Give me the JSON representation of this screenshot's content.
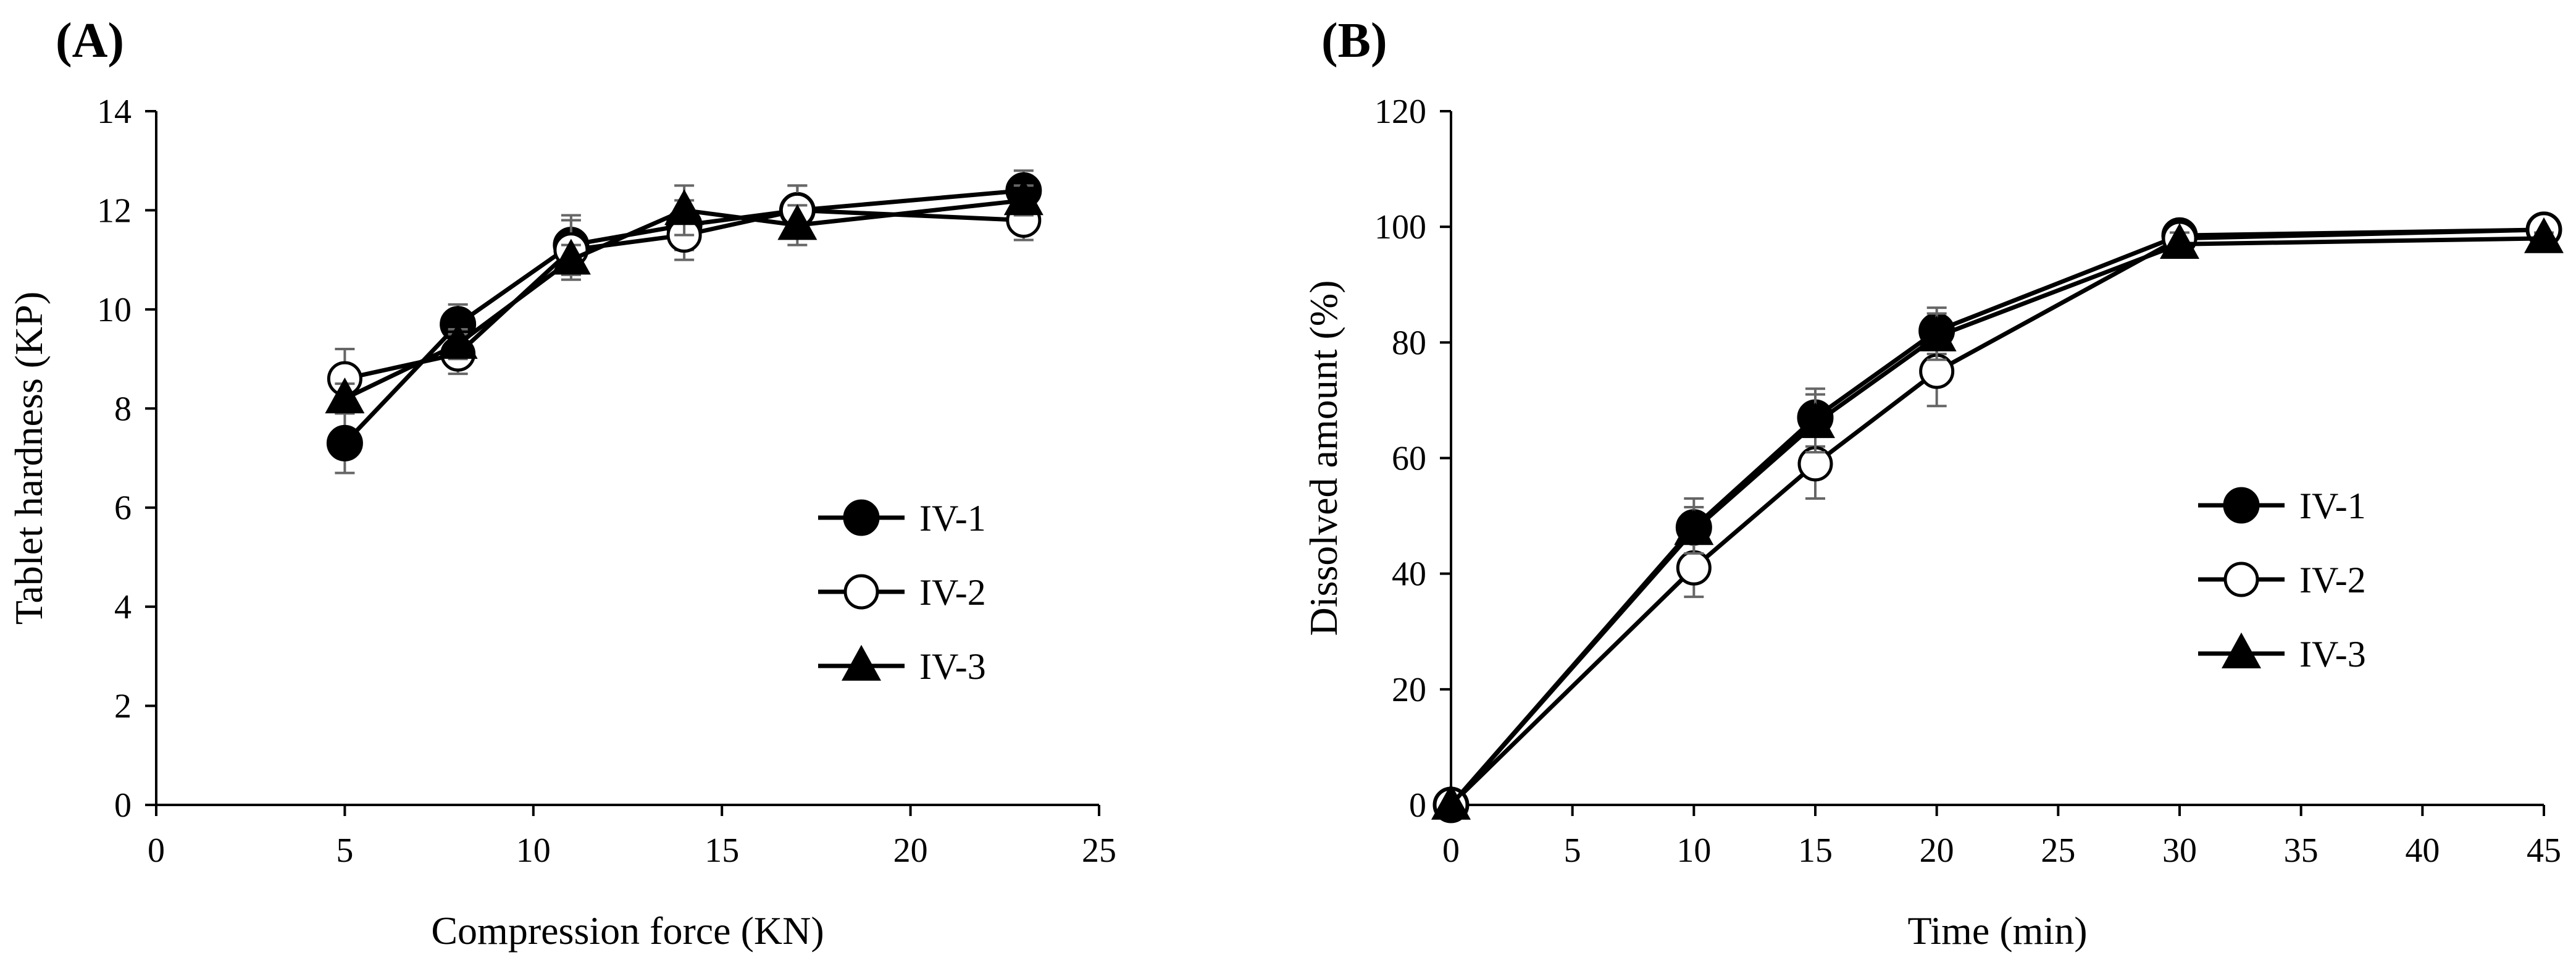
{
  "chart_data": [
    {
      "type": "line",
      "panel_label": "(A)",
      "xlabel": "Compression force (KN)",
      "ylabel": "Tablet hardness (KP)",
      "xlim": [
        0,
        25
      ],
      "ylim": [
        0,
        14
      ],
      "xticks": [
        0,
        5,
        10,
        15,
        20,
        25
      ],
      "yticks": [
        0,
        2,
        4,
        6,
        8,
        10,
        12,
        14
      ],
      "grid": false,
      "legend_position": "right-center",
      "series": [
        {
          "name": "IV-1",
          "marker": "circle-filled",
          "x": [
            5,
            8,
            11,
            14,
            17,
            23
          ],
          "y": [
            7.3,
            9.7,
            11.3,
            11.7,
            12.0,
            12.4
          ],
          "err": [
            0.6,
            0.4,
            0.6,
            0.5,
            0.5,
            0.4
          ]
        },
        {
          "name": "IV-2",
          "marker": "circle-open",
          "x": [
            5,
            8,
            11,
            14,
            17,
            23
          ],
          "y": [
            8.6,
            9.1,
            11.2,
            11.5,
            12.0,
            11.8
          ],
          "err": [
            0.6,
            0.4,
            0.6,
            0.5,
            0.5,
            0.4
          ]
        },
        {
          "name": "IV-3",
          "marker": "triangle-filled",
          "x": [
            5,
            8,
            11,
            14,
            17,
            23
          ],
          "y": [
            8.2,
            9.3,
            11.0,
            12.0,
            11.7,
            12.2
          ],
          "err": [
            0.3,
            0.3,
            0.3,
            0.5,
            0.4,
            0.3
          ]
        }
      ]
    },
    {
      "type": "line",
      "panel_label": "(B)",
      "xlabel": "Time (min)",
      "ylabel": "Dissolved amount (%)",
      "xlim": [
        0,
        45
      ],
      "ylim": [
        0,
        120
      ],
      "xticks": [
        0,
        5,
        10,
        15,
        20,
        25,
        30,
        35,
        40,
        45
      ],
      "yticks": [
        0,
        20,
        40,
        60,
        80,
        100,
        120
      ],
      "grid": false,
      "legend_position": "right-center",
      "series": [
        {
          "name": "IV-1",
          "marker": "circle-filled",
          "x": [
            0,
            10,
            15,
            20,
            30,
            45
          ],
          "y": [
            0,
            48,
            67,
            82,
            98.5,
            99.5
          ],
          "err": [
            0,
            5,
            5,
            4,
            2,
            1
          ]
        },
        {
          "name": "IV-2",
          "marker": "circle-open",
          "x": [
            0,
            10,
            15,
            20,
            30,
            45
          ],
          "y": [
            0,
            41,
            59,
            75,
            98,
            99.5
          ],
          "err": [
            0,
            5,
            6,
            6,
            2,
            1
          ]
        },
        {
          "name": "IV-3",
          "marker": "triangle-filled",
          "x": [
            0,
            10,
            15,
            20,
            30,
            45
          ],
          "y": [
            0,
            47.5,
            66,
            81,
            97,
            98
          ],
          "err": [
            0,
            4,
            5,
            4,
            2,
            1
          ]
        }
      ]
    }
  ],
  "colors": {
    "line": "#000000",
    "error_bar": "#666666",
    "open_marker_fill": "#ffffff"
  }
}
